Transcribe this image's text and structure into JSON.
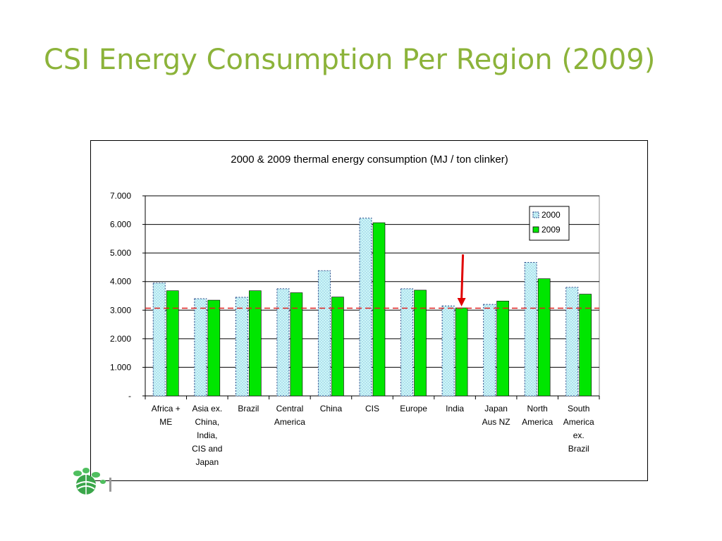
{
  "slide": {
    "title": "CSI Energy Consumption Per Region (2009)"
  },
  "colors": {
    "title": "#8cb33a",
    "series_2000_fill": "#ccf7f7",
    "series_2009_fill": "#00e600",
    "reference_line": "#e02020",
    "arrow": "#e00000",
    "logo_green": "#3aa64a"
  },
  "icons": {
    "logo": "csi-leaf-logo-icon"
  },
  "chart_data": {
    "type": "bar",
    "title": "2000 & 2009 thermal energy consumption (MJ / ton clinker)",
    "xlabel": "",
    "ylabel": "",
    "ylim": [
      0,
      7000
    ],
    "yticks": [
      {
        "value": 0,
        "label": "-"
      },
      {
        "value": 1000,
        "label": "1.000"
      },
      {
        "value": 2000,
        "label": "2.000"
      },
      {
        "value": 3000,
        "label": "3.000"
      },
      {
        "value": 4000,
        "label": "4.000"
      },
      {
        "value": 5000,
        "label": "5.000"
      },
      {
        "value": 6000,
        "label": "6.000"
      },
      {
        "value": 7000,
        "label": "7.000"
      }
    ],
    "grid": true,
    "legend_position": "top-right",
    "categories": [
      [
        "Africa +",
        "ME"
      ],
      [
        "Asia ex.",
        "China,",
        "India,",
        "CIS and",
        "Japan"
      ],
      [
        "Brazil"
      ],
      [
        "Central",
        "America"
      ],
      [
        "China"
      ],
      [
        "CIS"
      ],
      [
        "Europe"
      ],
      [
        "India"
      ],
      [
        "Japan",
        "Aus NZ"
      ],
      [
        "North",
        "America"
      ],
      [
        "South",
        "America",
        "ex.",
        "Brazil"
      ]
    ],
    "series": [
      {
        "name": "2000",
        "values": [
          3950,
          3400,
          3450,
          3750,
          4380,
          6220,
          3750,
          3150,
          3200,
          4670,
          3800
        ]
      },
      {
        "name": "2009",
        "values": [
          3680,
          3350,
          3680,
          3610,
          3460,
          6060,
          3700,
          3080,
          3320,
          4100,
          3560
        ]
      }
    ],
    "reference_line": {
      "value": 3070,
      "style": "dashed"
    },
    "annotation": {
      "type": "arrow",
      "category_index": 7,
      "series": "2009",
      "from_value": 4950
    }
  }
}
